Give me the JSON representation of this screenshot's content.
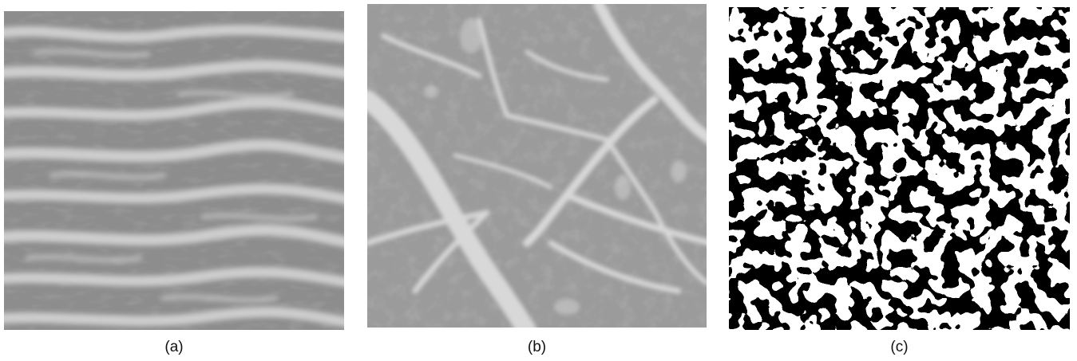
{
  "panels": [
    {
      "caption": "(a)",
      "content": "grayscale-horizontal-ridge-texture",
      "colors": {
        "background": "#8e8e8e",
        "ridge": "#cfcfcf"
      }
    },
    {
      "caption": "(b)",
      "content": "grayscale-vein-network-texture",
      "colors": {
        "background": "#9a9a9a",
        "vein": "#d6d6d6"
      }
    },
    {
      "caption": "(c)",
      "content": "binary-black-white-spot-pattern",
      "colors": {
        "background": "#ffffff",
        "spot": "#000000"
      }
    }
  ]
}
